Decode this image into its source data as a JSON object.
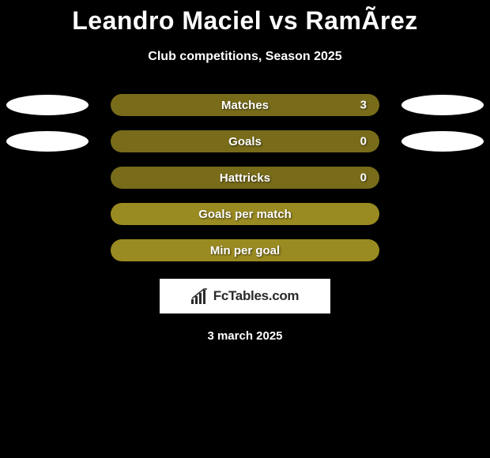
{
  "title": "Leandro Maciel vs RamÃ­rez",
  "subtitle": "Club competitions, Season 2025",
  "theme": {
    "background": "#000000",
    "pill_shaded": "rgba(154,138,34,0.78)",
    "pill_solid": "#9a8a22",
    "text_color": "#ffffff",
    "oval_color": "#ffffff",
    "brand_bg": "#ffffff",
    "brand_text_color": "#2b2b2b"
  },
  "stats": {
    "type": "comparison-bars",
    "rows": [
      {
        "label": "Matches",
        "value": "3",
        "show_value": true,
        "left_oval": true,
        "right_oval": true,
        "pill_style": "shaded"
      },
      {
        "label": "Goals",
        "value": "0",
        "show_value": true,
        "left_oval": true,
        "right_oval": true,
        "pill_style": "shaded"
      },
      {
        "label": "Hattricks",
        "value": "0",
        "show_value": true,
        "left_oval": false,
        "right_oval": false,
        "pill_style": "shaded"
      },
      {
        "label": "Goals per match",
        "value": "",
        "show_value": false,
        "left_oval": false,
        "right_oval": false,
        "pill_style": "solid"
      },
      {
        "label": "Min per goal",
        "value": "",
        "show_value": false,
        "left_oval": false,
        "right_oval": false,
        "pill_style": "solid"
      }
    ]
  },
  "branding": {
    "icon": "bar-chart-icon",
    "text": "FcTables.com"
  },
  "footer_date": "3 march 2025"
}
